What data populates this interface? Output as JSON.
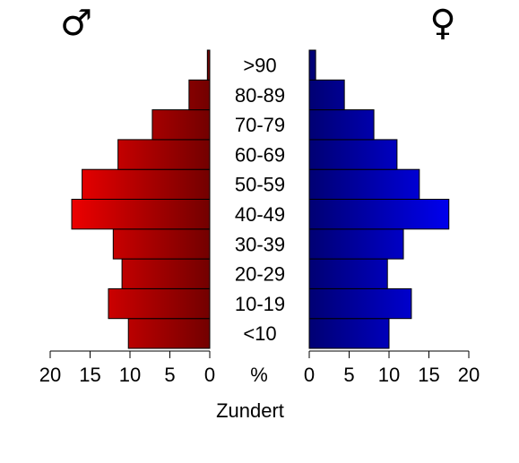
{
  "chart_data": {
    "type": "pyramid",
    "title": "Zundert",
    "xlabel": "%",
    "categories": [
      "<10",
      "10-19",
      "20-29",
      "30-39",
      "40-49",
      "50-59",
      "60-69",
      "70-79",
      "80-89",
      ">90"
    ],
    "series": [
      {
        "name": "♂",
        "color": "#ff0000",
        "values": [
          10.2,
          12.7,
          11.0,
          12.1,
          17.3,
          16.0,
          11.5,
          7.2,
          2.6,
          0.3
        ]
      },
      {
        "name": "♀",
        "color": "#0000ff",
        "values": [
          10.0,
          12.8,
          9.8,
          11.8,
          17.5,
          13.8,
          11.0,
          8.1,
          4.4,
          0.8
        ]
      }
    ],
    "xlim": [
      0,
      20
    ],
    "xticks": [
      0,
      5,
      10,
      15,
      20
    ]
  }
}
